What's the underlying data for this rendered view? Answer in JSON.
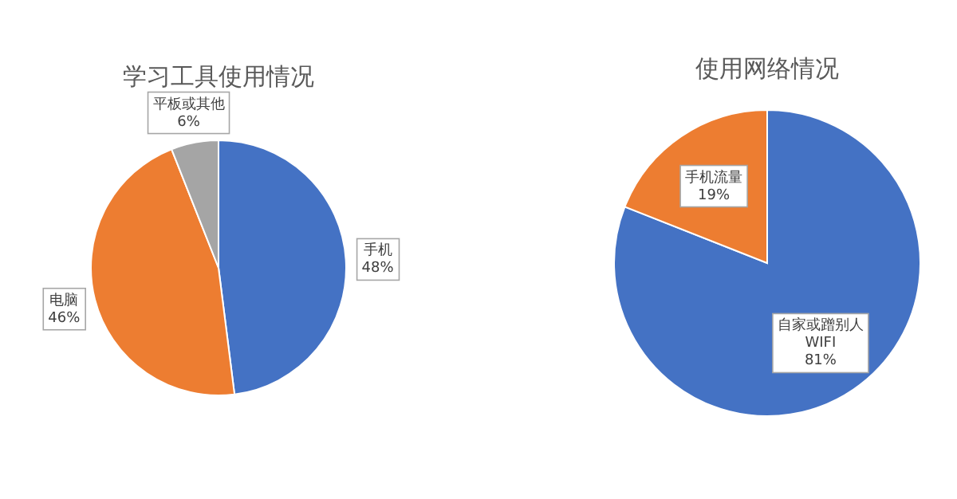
{
  "chart_data": [
    {
      "type": "pie",
      "title": "学习工具使用情况",
      "categories": [
        "手机",
        "电脑",
        "平板或其他"
      ],
      "values": [
        48,
        46,
        6
      ],
      "colors": [
        "#4472c4",
        "#ed7d31",
        "#a5a5a5"
      ],
      "value_labels": [
        "48%",
        "46%",
        "6%"
      ]
    },
    {
      "type": "pie",
      "title": "使用网络情况",
      "categories": [
        "自家或蹭别人 WIFI",
        "手机流量"
      ],
      "values": [
        81,
        19
      ],
      "colors": [
        "#4472c4",
        "#ed7d31"
      ],
      "value_labels": [
        "81%",
        "19%"
      ]
    }
  ]
}
